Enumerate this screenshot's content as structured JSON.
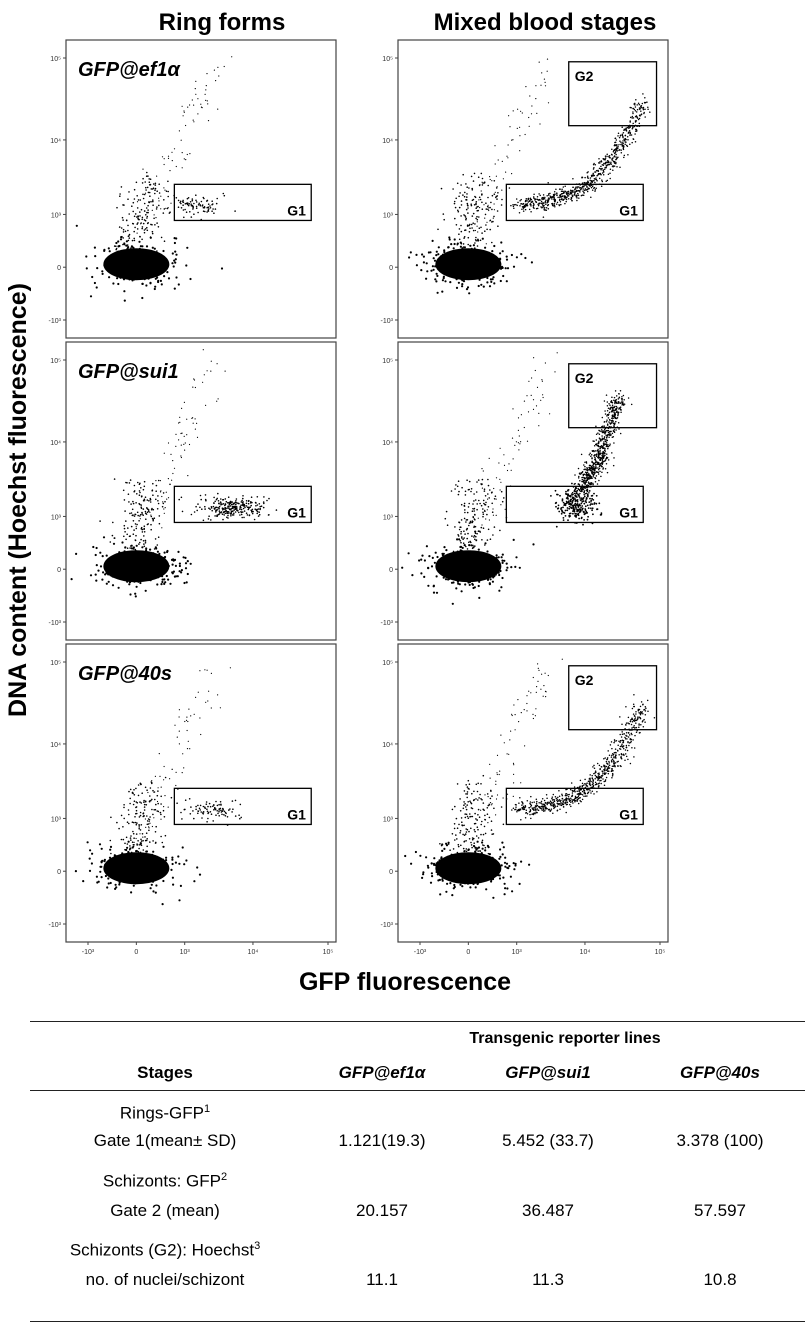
{
  "figure": {
    "column_titles": [
      "Ring forms",
      "Mixed blood stages"
    ],
    "ylabel": "DNA content (Hoechst fluorescence)",
    "xlabel": "GFP fluorescence",
    "x_ticks": [
      "-10³",
      "0",
      "10³",
      "10⁴",
      "10⁵"
    ],
    "y_ticks": [
      "10⁵",
      "10⁴",
      "10³",
      "0",
      "-10³"
    ],
    "gate_labels": {
      "g1": "G1",
      "g2": "G2"
    }
  },
  "chart_data": [
    {
      "type": "scatter",
      "row": 0,
      "col": 0,
      "line_label": "GFP@ef1α",
      "gates": [
        "G1"
      ],
      "xlim": [
        -1000,
        100000
      ],
      "ylim": [
        -1000,
        100000
      ],
      "y_scale": "biexponential",
      "x_scale": "biexponential"
    },
    {
      "type": "scatter",
      "row": 0,
      "col": 1,
      "gates": [
        "G1",
        "G2"
      ],
      "xlim": [
        -1000,
        100000
      ],
      "ylim": [
        -1000,
        100000
      ],
      "y_scale": "biexponential",
      "x_scale": "biexponential"
    },
    {
      "type": "scatter",
      "row": 1,
      "col": 0,
      "line_label": "GFP@sui1",
      "gates": [
        "G1"
      ],
      "xlim": [
        -1000,
        100000
      ],
      "ylim": [
        -1000,
        100000
      ],
      "y_scale": "biexponential",
      "x_scale": "biexponential"
    },
    {
      "type": "scatter",
      "row": 1,
      "col": 1,
      "gates": [
        "G1",
        "G2"
      ],
      "xlim": [
        -1000,
        100000
      ],
      "ylim": [
        -1000,
        100000
      ],
      "y_scale": "biexponential",
      "x_scale": "biexponential"
    },
    {
      "type": "scatter",
      "row": 2,
      "col": 0,
      "line_label": "GFP@40s",
      "gates": [
        "G1"
      ],
      "xlim": [
        -1000,
        100000
      ],
      "ylim": [
        -1000,
        100000
      ],
      "y_scale": "biexponential",
      "x_scale": "biexponential"
    },
    {
      "type": "scatter",
      "row": 2,
      "col": 1,
      "gates": [
        "G1",
        "G2"
      ],
      "xlim": [
        -1000,
        100000
      ],
      "ylim": [
        -1000,
        100000
      ],
      "y_scale": "biexponential",
      "x_scale": "biexponential"
    }
  ],
  "table": {
    "group_header": "Transgenic reporter lines",
    "stages_header": "Stages",
    "columns": [
      "GFP@ef1α",
      "GFP@sui1",
      "GFP@40s"
    ],
    "rows": [
      {
        "label1": "Rings-GFP",
        "sup": "1",
        "label2": "Gate 1(mean± SD)",
        "values": [
          "1.121(19.3)",
          "5.452 (33.7)",
          "3.378 (100)"
        ]
      },
      {
        "label1": "Schizonts: GFP",
        "sup": "2",
        "label2": "Gate 2 (mean)",
        "values": [
          "20.157",
          "36.487",
          "57.597"
        ]
      },
      {
        "label1": "Schizonts (G2): Hoechst",
        "sup": "3",
        "label2": "no. of nuclei/schizont",
        "values": [
          "11.1",
          "11.3",
          "10.8"
        ]
      }
    ]
  }
}
